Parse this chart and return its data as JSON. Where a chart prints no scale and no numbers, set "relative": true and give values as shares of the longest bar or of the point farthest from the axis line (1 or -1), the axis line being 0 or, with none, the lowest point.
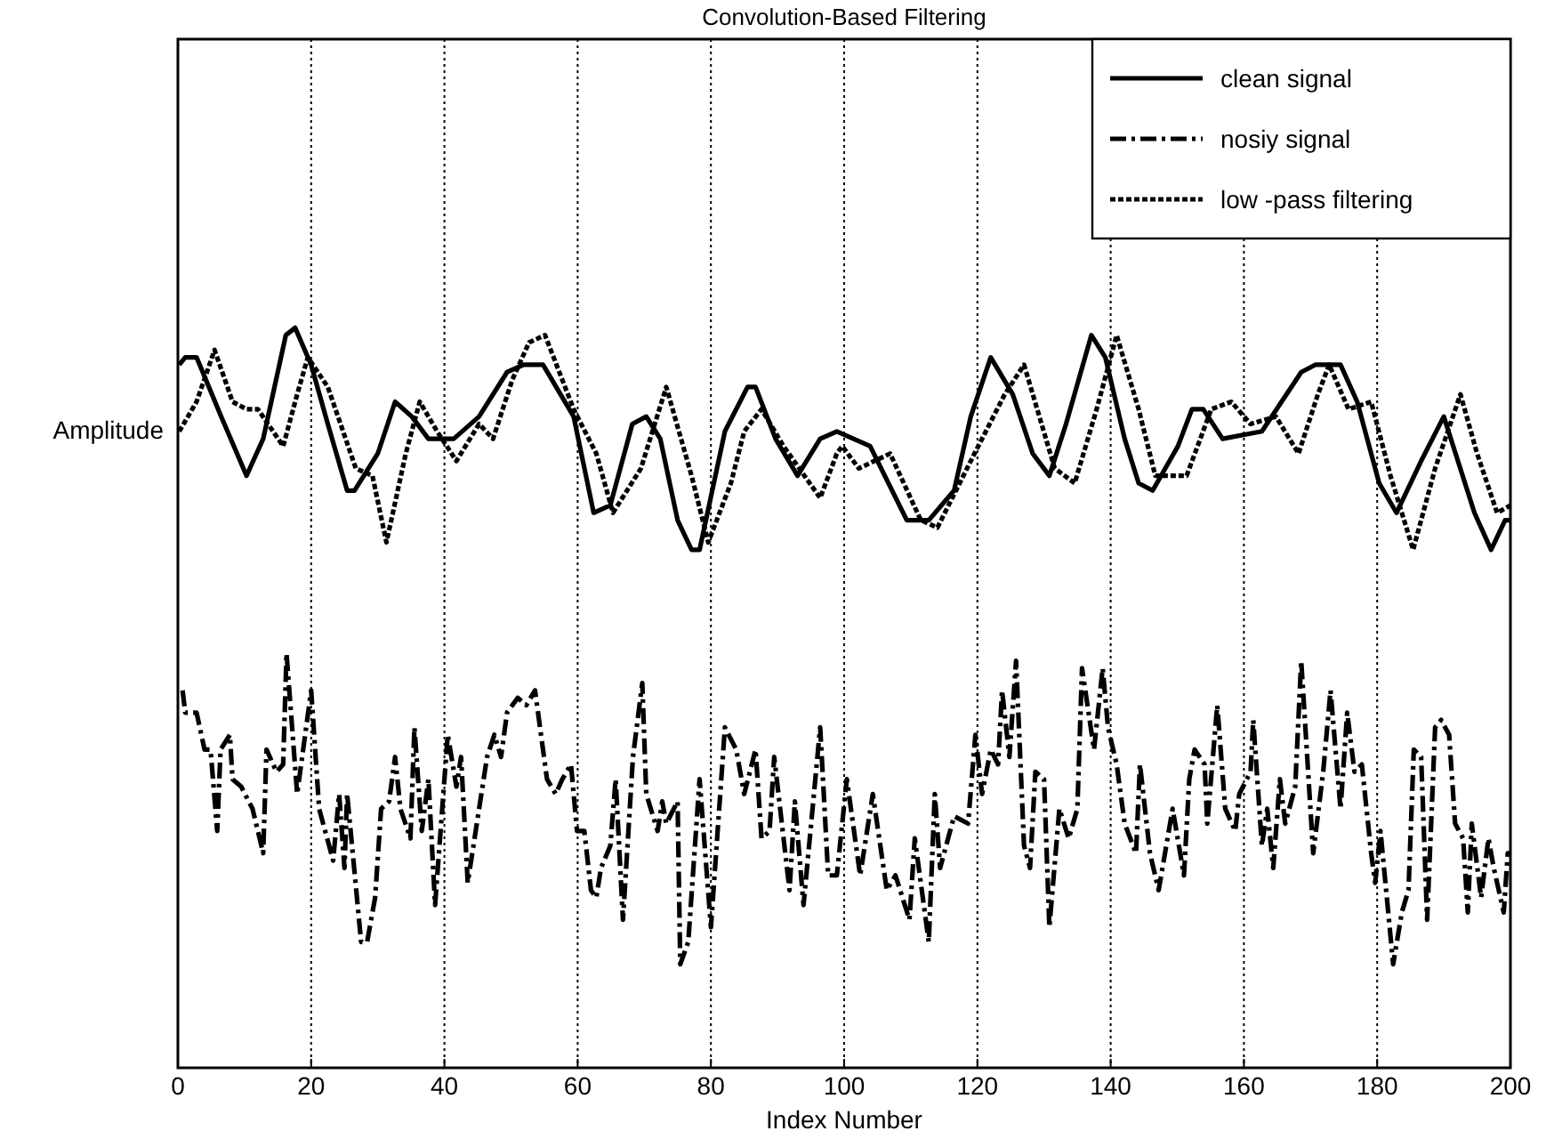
{
  "chart_data": {
    "type": "line",
    "title": "Convolution-Based Filtering",
    "xlabel": "Index Number",
    "ylabel": "Amplitude",
    "relative": true,
    "xlim": [
      0,
      200
    ],
    "xticks": [
      0,
      20,
      40,
      60,
      80,
      100,
      120,
      140,
      160,
      180,
      200
    ],
    "grid": "x",
    "legend": "top right",
    "series": [
      {
        "name": "clean signal",
        "color": "#000000",
        "line_style": "solid",
        "x": [
          0.2,
          1.1,
          2.8,
          6.5,
          10.3,
          12.8,
          16.2,
          17.6,
          20,
          22.5,
          25.4,
          26.5,
          30,
          32.6,
          35.1,
          37.6,
          41.4,
          45.2,
          49.4,
          51.9,
          54.8,
          59.4,
          62.4,
          64.9,
          68.2,
          70.3,
          72.4,
          75,
          77.1,
          78.3,
          82.1,
          85.5,
          86.7,
          89.7,
          93,
          96.4,
          98.9,
          103.9,
          109.4,
          112.7,
          116.5,
          119,
          122,
          125.3,
          128.3,
          130.8,
          133.3,
          137.1,
          139.2,
          142.1,
          144.2,
          146.3,
          150.1,
          152.2,
          153.9,
          156.8,
          162.7,
          168.6,
          170.7,
          174.5,
          177,
          180.3,
          182.9,
          186.6,
          190,
          194.6,
          197.1,
          199.2,
          200
        ],
        "values": [
          0.95,
          0.96,
          0.96,
          0.88,
          0.8,
          0.85,
          0.99,
          1.0,
          0.95,
          0.87,
          0.78,
          0.78,
          0.83,
          0.9,
          0.88,
          0.85,
          0.85,
          0.88,
          0.94,
          0.95,
          0.95,
          0.88,
          0.75,
          0.76,
          0.87,
          0.88,
          0.85,
          0.74,
          0.7,
          0.7,
          0.86,
          0.92,
          0.92,
          0.85,
          0.8,
          0.85,
          0.86,
          0.84,
          0.74,
          0.74,
          0.78,
          0.88,
          0.96,
          0.91,
          0.83,
          0.8,
          0.87,
          0.99,
          0.96,
          0.85,
          0.79,
          0.78,
          0.84,
          0.89,
          0.89,
          0.85,
          0.86,
          0.94,
          0.95,
          0.95,
          0.9,
          0.79,
          0.75,
          0.82,
          0.88,
          0.75,
          0.7,
          0.74,
          0.74
        ]
      },
      {
        "name": "nosiy signal",
        "color": "#000000",
        "line_style": "dashed",
        "x": [
          0.7,
          1.1,
          2.8,
          4,
          4.9,
          5.9,
          6.4,
          7.8,
          8.2,
          9.5,
          11.2,
          12.8,
          13.3,
          14.8,
          15.8,
          16.3,
          17.9,
          20,
          21.2,
          23.3,
          24.2,
          25,
          25.4,
          27.5,
          28.4,
          29.6,
          30.5,
          31.7,
          32.6,
          33.4,
          34.9,
          35.5,
          36.6,
          37.6,
          38.6,
          40.5,
          41.8,
          42.5,
          43.5,
          46.4,
          47.5,
          48.5,
          49.4,
          51,
          52.3,
          53.6,
          55.4,
          56.7,
          57.7,
          59,
          59.9,
          61,
          62,
          62.8,
          63.5,
          64.9,
          65.7,
          66.8,
          68.3,
          69.7,
          70.3,
          72,
          72.7,
          73.3,
          75,
          75.4,
          76.6,
          78.3,
          80,
          82.1,
          83.8,
          85,
          86.7,
          87.6,
          88.8,
          89.5,
          91.8,
          92.6,
          93.9,
          96.4,
          97.6,
          98.9,
          100.4,
          102.4,
          104.3,
          106.4,
          107.7,
          109.8,
          110.6,
          112.7,
          113.6,
          114.4,
          116.5,
          118.6,
          119.7,
          120.7,
          122,
          123.1,
          123.7,
          124.8,
          125.8,
          127,
          127.9,
          128.7,
          130,
          130.8,
          132.3,
          133.7,
          135,
          135.7,
          137.5,
          138.8,
          139.6,
          140.9,
          142.1,
          143.8,
          144.4,
          145.9,
          147.2,
          149.3,
          151,
          151.8,
          152.6,
          154.1,
          154.5,
          156,
          157.2,
          158.7,
          159.3,
          161,
          161.4,
          162.7,
          163.5,
          164.4,
          165.4,
          166.2,
          167.7,
          168.6,
          170.4,
          171.9,
          173,
          174.5,
          175.5,
          176.6,
          177.7,
          179.1,
          179.7,
          180.5,
          182.4,
          183.7,
          184.7,
          185.5,
          186.6,
          187.5,
          188.7,
          189.6,
          190.8,
          191.7,
          192.9,
          193.6,
          194.2,
          195.6,
          196.7,
          197.5,
          199,
          199.6,
          200
        ],
        "values": [
          0.51,
          0.48,
          0.48,
          0.43,
          0.43,
          0.32,
          0.43,
          0.45,
          0.39,
          0.38,
          0.35,
          0.29,
          0.43,
          0.4,
          0.41,
          0.56,
          0.37,
          0.51,
          0.35,
          0.28,
          0.37,
          0.27,
          0.37,
          0.17,
          0.17,
          0.23,
          0.35,
          0.36,
          0.42,
          0.35,
          0.31,
          0.46,
          0.32,
          0.39,
          0.22,
          0.45,
          0.38,
          0.42,
          0.25,
          0.42,
          0.45,
          0.42,
          0.48,
          0.5,
          0.49,
          0.51,
          0.39,
          0.37,
          0.39,
          0.41,
          0.32,
          0.32,
          0.24,
          0.23,
          0.27,
          0.3,
          0.39,
          0.2,
          0.42,
          0.52,
          0.37,
          0.32,
          0.36,
          0.33,
          0.36,
          0.14,
          0.17,
          0.39,
          0.19,
          0.46,
          0.43,
          0.37,
          0.43,
          0.31,
          0.32,
          0.42,
          0.24,
          0.36,
          0.22,
          0.46,
          0.26,
          0.26,
          0.39,
          0.26,
          0.37,
          0.24,
          0.26,
          0.2,
          0.31,
          0.17,
          0.37,
          0.27,
          0.34,
          0.33,
          0.45,
          0.37,
          0.43,
          0.41,
          0.51,
          0.42,
          0.55,
          0.3,
          0.27,
          0.4,
          0.39,
          0.19,
          0.35,
          0.31,
          0.35,
          0.54,
          0.43,
          0.54,
          0.46,
          0.41,
          0.33,
          0.29,
          0.41,
          0.29,
          0.24,
          0.35,
          0.26,
          0.39,
          0.43,
          0.41,
          0.33,
          0.49,
          0.35,
          0.32,
          0.37,
          0.4,
          0.47,
          0.3,
          0.35,
          0.27,
          0.39,
          0.33,
          0.38,
          0.55,
          0.29,
          0.4,
          0.51,
          0.35,
          0.48,
          0.4,
          0.41,
          0.29,
          0.25,
          0.32,
          0.14,
          0.21,
          0.24,
          0.43,
          0.42,
          0.2,
          0.46,
          0.47,
          0.45,
          0.33,
          0.31,
          0.21,
          0.33,
          0.23,
          0.31,
          0.27,
          0.21,
          0.29,
          0.29
        ]
      },
      {
        "name": "low -pass filtering",
        "color": "#000000",
        "line_style": "dotted",
        "x": [
          0.2,
          2.8,
          5.5,
          8.2,
          10.3,
          12,
          15.8,
          17.9,
          19.5,
          22.5,
          26.7,
          29.2,
          31.3,
          34.2,
          36.3,
          38.9,
          41.8,
          45.2,
          47.3,
          50.2,
          52.7,
          55.1,
          59.4,
          62.8,
          65.3,
          69.5,
          73.3,
          77.1,
          79.6,
          83,
          85,
          87.6,
          90.9,
          96.4,
          98.9,
          99.7,
          102.2,
          106.9,
          111.5,
          114,
          119,
          124.1,
          127,
          131.6,
          134.6,
          137.9,
          140.9,
          144.2,
          146.7,
          151.4,
          155.1,
          158.1,
          161,
          164.8,
          168.2,
          171.1,
          172.8,
          175.7,
          179.1,
          182,
          185.4,
          188.7,
          192.5,
          195,
          198,
          200
        ],
        "values": [
          0.86,
          0.9,
          0.97,
          0.9,
          0.89,
          0.89,
          0.84,
          0.91,
          0.96,
          0.92,
          0.81,
          0.8,
          0.71,
          0.83,
          0.9,
          0.86,
          0.82,
          0.87,
          0.85,
          0.93,
          0.98,
          0.99,
          0.89,
          0.83,
          0.75,
          0.81,
          0.92,
          0.8,
          0.71,
          0.79,
          0.86,
          0.89,
          0.84,
          0.77,
          0.83,
          0.84,
          0.81,
          0.83,
          0.74,
          0.73,
          0.82,
          0.91,
          0.95,
          0.81,
          0.79,
          0.89,
          0.99,
          0.89,
          0.8,
          0.8,
          0.89,
          0.9,
          0.87,
          0.88,
          0.83,
          0.91,
          0.95,
          0.89,
          0.9,
          0.8,
          0.7,
          0.81,
          0.91,
          0.83,
          0.75,
          0.76
        ]
      }
    ]
  }
}
